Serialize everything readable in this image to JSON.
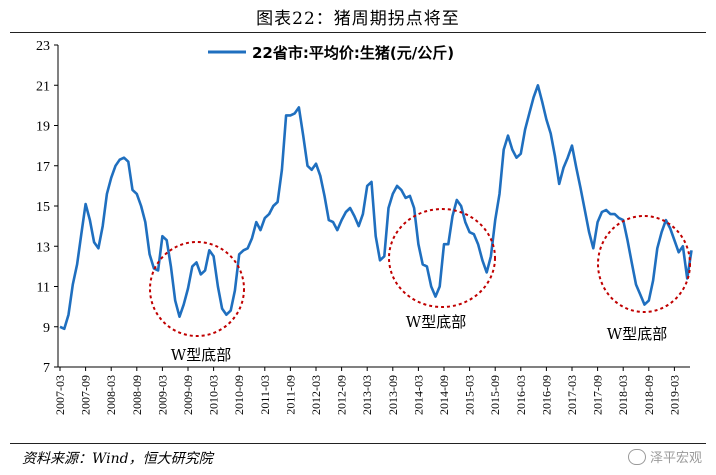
{
  "figure": {
    "title": "图表22：猪周期拐点将至",
    "source": "资料来源：Wind，恒大研究院",
    "watermark": "泽平宏观"
  },
  "chart_data": {
    "type": "line",
    "title": "",
    "xlabel": "",
    "ylabel": "",
    "ylim": [
      7,
      23
    ],
    "yticks": [
      7,
      9,
      11,
      13,
      15,
      17,
      19,
      21,
      23
    ],
    "xticks": [
      "2007-03",
      "2007-09",
      "2008-03",
      "2008-09",
      "2009-03",
      "2009-09",
      "2010-03",
      "2010-09",
      "2011-03",
      "2011-09",
      "2012-03",
      "2012-09",
      "2013-03",
      "2013-09",
      "2014-03",
      "2014-09",
      "2015-03",
      "2015-09",
      "2016-03",
      "2016-09",
      "2017-03",
      "2017-09",
      "2018-03",
      "2018-09",
      "2019-03"
    ],
    "grid": false,
    "legend": "top-center",
    "series": [
      {
        "name": "22省市:平均价:生猪(元/公斤)",
        "color": "#1f6fbf",
        "x": [
          0,
          1,
          2,
          3,
          4,
          5,
          6,
          7,
          8,
          9,
          10,
          11,
          12,
          13,
          14,
          15,
          16,
          17,
          18,
          19,
          20,
          21,
          22,
          23,
          24,
          25,
          26,
          27,
          28,
          29,
          30,
          31,
          32,
          33,
          34,
          35,
          36,
          37,
          38,
          39,
          40,
          41,
          42,
          43,
          44,
          45,
          46,
          47,
          48,
          49,
          50,
          51,
          52,
          53,
          54,
          55,
          56,
          57,
          58,
          59,
          60,
          61,
          62,
          63,
          64,
          65,
          66,
          67,
          68,
          69,
          70,
          71,
          72,
          73,
          74,
          75,
          76,
          77,
          78,
          79,
          80,
          81,
          82,
          83,
          84,
          85,
          86,
          87,
          88,
          89,
          90,
          91,
          92,
          93,
          94,
          95,
          96,
          97,
          98,
          99,
          100,
          101,
          102,
          103,
          104,
          105,
          106,
          107,
          108,
          109,
          110,
          111,
          112,
          113,
          114,
          115,
          116,
          117,
          118,
          119,
          120,
          121,
          122,
          123,
          124,
          125,
          126,
          127,
          128,
          129,
          130,
          131,
          132,
          133,
          134,
          135,
          136,
          137,
          138,
          139,
          140,
          141,
          142,
          143,
          144,
          145,
          146,
          147,
          148
        ],
        "values": [
          9.0,
          8.9,
          9.6,
          11.1,
          12.1,
          13.6,
          15.1,
          14.3,
          13.2,
          12.9,
          14.0,
          15.6,
          16.4,
          17.0,
          17.3,
          17.4,
          17.2,
          15.8,
          15.6,
          15.0,
          14.2,
          12.6,
          11.9,
          11.8,
          13.5,
          13.3,
          12.0,
          10.3,
          9.5,
          10.1,
          10.9,
          12.0,
          12.2,
          11.6,
          11.8,
          12.8,
          12.5,
          11.0,
          9.9,
          9.6,
          9.8,
          10.8,
          12.6,
          12.8,
          12.9,
          13.4,
          14.2,
          13.8,
          14.4,
          14.6,
          15.0,
          15.2,
          16.8,
          19.5,
          19.5,
          19.6,
          19.9,
          18.5,
          17.0,
          16.8,
          17.1,
          16.5,
          15.5,
          14.3,
          14.2,
          13.8,
          14.3,
          14.7,
          14.9,
          14.5,
          14.0,
          14.6,
          16.0,
          16.2,
          13.5,
          12.3,
          12.5,
          14.9,
          15.6,
          16.0,
          15.8,
          15.4,
          15.5,
          14.9,
          13.1,
          12.1,
          12.0,
          11.0,
          10.5,
          11.0,
          13.1,
          13.1,
          14.5,
          15.3,
          15.0,
          14.2,
          13.7,
          13.6,
          13.1,
          12.3,
          11.7,
          12.5,
          14.3,
          15.6,
          17.8,
          18.5,
          17.8,
          17.4,
          17.6,
          18.8,
          19.6,
          20.4,
          21.0,
          20.2,
          19.3,
          18.6,
          17.5,
          16.1,
          16.9,
          17.4,
          18.0,
          16.9,
          15.9,
          14.8,
          13.7,
          12.9,
          14.2,
          14.7,
          14.8,
          14.6,
          14.6,
          14.4,
          14.3,
          13.3,
          12.2,
          11.1,
          10.6,
          10.1,
          10.3,
          11.3,
          12.9,
          13.7,
          14.3,
          13.9,
          13.3,
          12.7,
          13.0,
          11.4,
          12.8
        ]
      }
    ],
    "annotations": [
      {
        "text": "W型底部"
      },
      {
        "text": "W型底部"
      },
      {
        "text": "W型底部"
      }
    ]
  }
}
